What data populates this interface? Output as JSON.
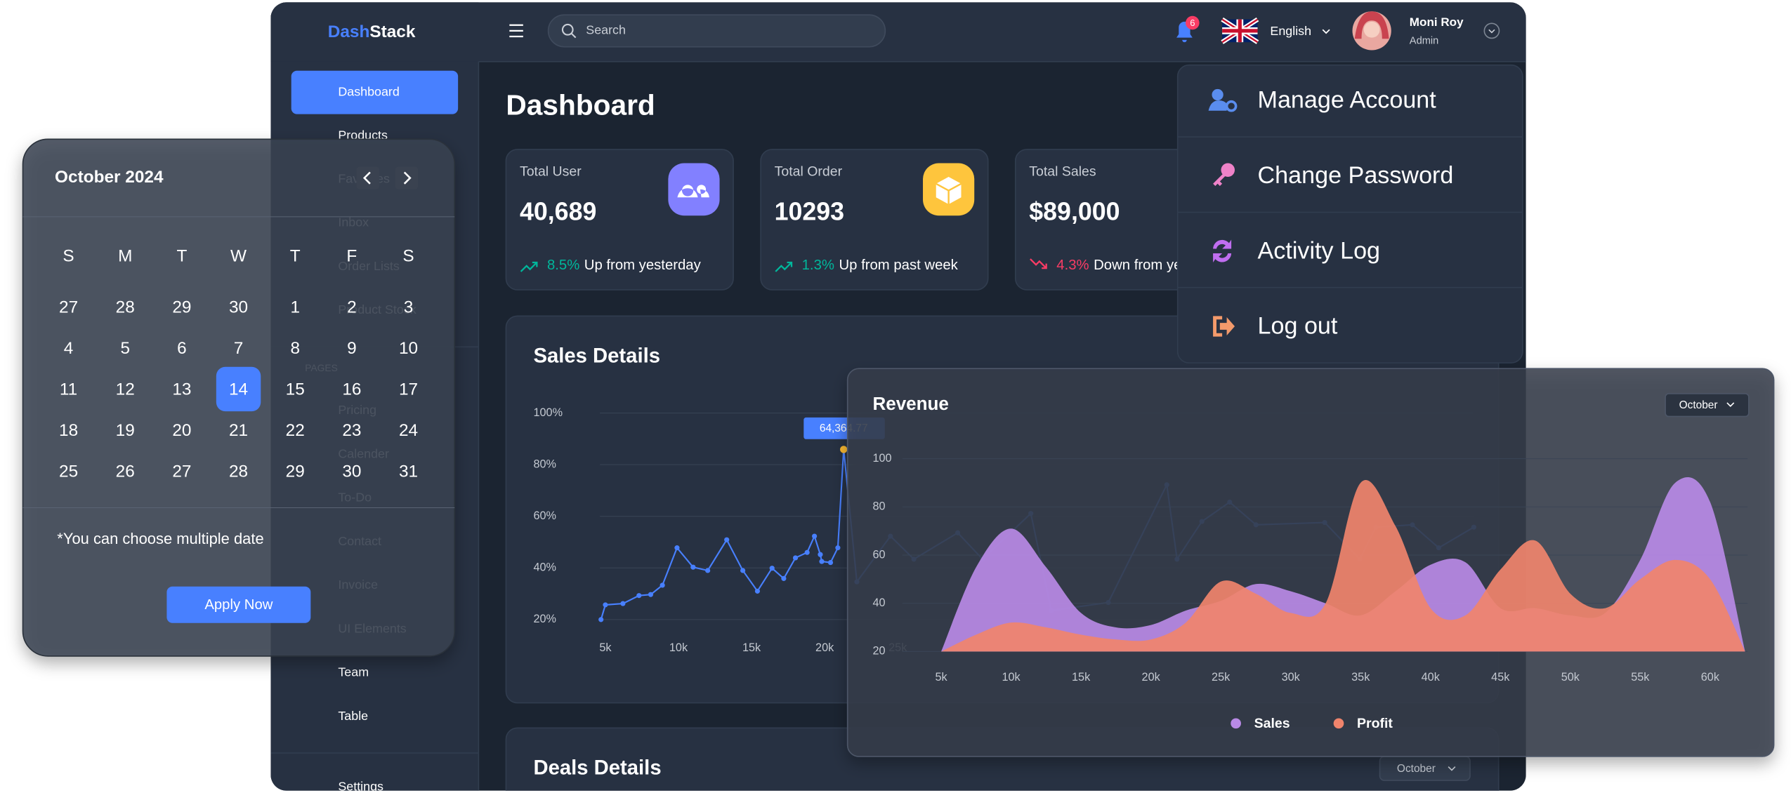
{
  "header": {
    "logo_part1": "Dash",
    "logo_part2": "Stack",
    "search_placeholder": "Search",
    "notification_count": 6,
    "language": "English",
    "user_name": "Moni Roy",
    "user_role": "Admin"
  },
  "sidebar": {
    "items": [
      "Dashboard",
      "Products",
      "Favorites",
      "Inbox",
      "Order Lists",
      "Product Stock"
    ],
    "section_label": "PAGES",
    "page_items": [
      "Pricing",
      "Calender",
      "To-Do",
      "Contact",
      "Invoice",
      "UI Elements",
      "Team",
      "Table"
    ],
    "settings": "Settings"
  },
  "page_title": "Dashboard",
  "stat_cards": [
    {
      "label": "Total User",
      "value": "40,689",
      "change": "8.5%",
      "change_text": "Up from yesterday",
      "trend": "up",
      "icon_color": "#8280ff"
    },
    {
      "label": "Total Order",
      "value": "10293",
      "change": "1.3%",
      "change_text": "Up from past week",
      "trend": "up",
      "icon_color": "#fec53d"
    },
    {
      "label": "Total Sales",
      "value": "$89,000",
      "change": "4.3%",
      "change_text": "Down from yesterday",
      "trend": "down"
    }
  ],
  "chart_data": [
    {
      "type": "line",
      "title": "Sales Details",
      "color": "#4880ff",
      "x": [
        4.7,
        5,
        6.2,
        7.3,
        8.1,
        8.9,
        9.9,
        11,
        12,
        13.3,
        14.4,
        15.4,
        16.4,
        17.2,
        18,
        18.8,
        19.3,
        19.7,
        19.8,
        20.4,
        20.9,
        21.3,
        22.2,
        24.5,
        26.1,
        29.1,
        30.8,
        34.1,
        35.5,
        39.4,
        43.4,
        44.1,
        45.8,
        47.7,
        49.5,
        54.2,
        56.6,
        57.7,
        60.2,
        62,
        64.4
      ],
      "values": [
        20,
        25.7,
        26.2,
        29.3,
        29.7,
        33.3,
        47.8,
        40.3,
        39,
        50.9,
        39,
        31,
        39.9,
        35.9,
        43.9,
        46,
        52.3,
        45.2,
        42.5,
        42.1,
        47.8,
        85.9,
        34.6,
        52.3,
        43.4,
        53.6,
        43.4,
        61.1,
        23.5,
        26.6,
        72.2,
        43.4,
        58,
        65.5,
        56.7,
        57.6,
        43.4,
        55.8,
        56.7,
        47.8,
        55.8
      ],
      "tooltip": "64,364.77",
      "xlim": [
        4,
        65
      ],
      "xticks": [
        {
          "value": 5,
          "label": "5k"
        },
        {
          "value": 10,
          "label": "10k"
        },
        {
          "value": 15,
          "label": "15k"
        },
        {
          "value": 20,
          "label": "20k"
        },
        {
          "value": 25,
          "label": "25k"
        }
      ],
      "ylim": [
        20,
        100
      ],
      "yticks": [
        {
          "value": 100,
          "label": "100%"
        },
        {
          "value": 80,
          "label": "80%"
        },
        {
          "value": 60,
          "label": "60%"
        },
        {
          "value": 40,
          "label": "40%"
        },
        {
          "value": 20,
          "label": "20%"
        }
      ],
      "grid": true
    },
    {
      "type": "area",
      "title": "Revenue",
      "filter": "October",
      "x": [
        5,
        7.5,
        10,
        12.5,
        15,
        17.5,
        20,
        22.5,
        25,
        27.5,
        30,
        32.5,
        35,
        37.5,
        40,
        42.5,
        45,
        47.5,
        50,
        52.5,
        55,
        57.5,
        60,
        62.5
      ],
      "series": [
        {
          "name": "Sales",
          "color": "#b98ae6",
          "values": [
            20,
            55,
            71,
            55,
            36,
            30,
            31,
            37,
            41,
            48,
            45,
            40,
            35,
            45,
            56,
            57,
            38,
            38,
            35,
            36,
            58,
            90,
            82,
            20
          ]
        },
        {
          "name": "Profit",
          "color": "#f0846c",
          "values": [
            20,
            27,
            32,
            30,
            27,
            25,
            25,
            32,
            49,
            44,
            36,
            40,
            90,
            72,
            38,
            35,
            54,
            66,
            44,
            38,
            50,
            58,
            50,
            20
          ]
        }
      ],
      "xlim": [
        5,
        62.5
      ],
      "xticks": [
        {
          "value": 5,
          "label": "5k"
        },
        {
          "value": 10,
          "label": "10k"
        },
        {
          "value": 15,
          "label": "15k"
        },
        {
          "value": 20,
          "label": "20k"
        },
        {
          "value": 25,
          "label": "25k"
        },
        {
          "value": 30,
          "label": "30k"
        },
        {
          "value": 35,
          "label": "35k"
        },
        {
          "value": 40,
          "label": "40k"
        },
        {
          "value": 45,
          "label": "45k"
        },
        {
          "value": 50,
          "label": "50k"
        },
        {
          "value": 55,
          "label": "55k"
        },
        {
          "value": 60,
          "label": "60k"
        }
      ],
      "ylim": [
        20,
        100
      ],
      "yticks": [
        100,
        80,
        60,
        40,
        20
      ],
      "grid": true
    }
  ],
  "deals_details": {
    "title": "Deals Details",
    "filter": "October"
  },
  "account_menu": {
    "items": [
      "Manage Account",
      "Change Password",
      "Activity Log",
      "Log out"
    ]
  },
  "calendar": {
    "title": "October 2024",
    "weekdays": [
      "S",
      "M",
      "T",
      "W",
      "T",
      "F",
      "S"
    ],
    "weeks": [
      [
        27,
        28,
        29,
        30,
        1,
        2,
        3
      ],
      [
        4,
        5,
        6,
        7,
        8,
        9,
        10
      ],
      [
        11,
        12,
        13,
        14,
        15,
        16,
        17
      ],
      [
        18,
        19,
        20,
        21,
        22,
        23,
        24
      ],
      [
        25,
        26,
        27,
        28,
        29,
        30,
        31
      ]
    ],
    "selected_day": 14,
    "note": "*You can choose multiple date",
    "button": "Apply Now"
  }
}
